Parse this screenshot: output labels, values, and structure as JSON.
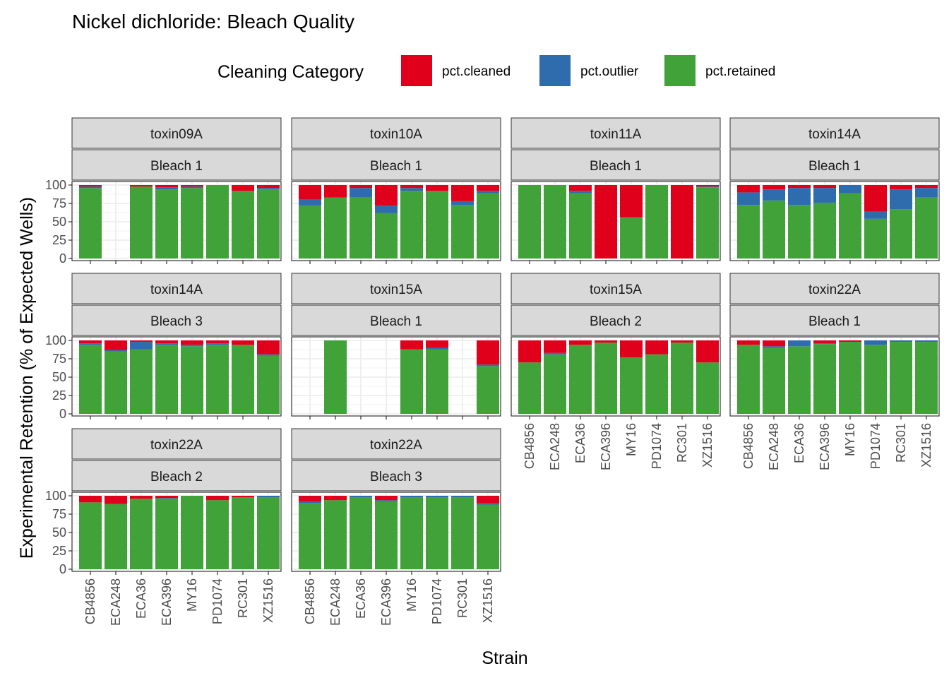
{
  "chart_data": {
    "type": "bar",
    "stacked": true,
    "title": "Nickel dichloride: Bleach Quality",
    "xlabel": "Strain",
    "ylabel": "Experimental Retention (% of Expected Wells)",
    "ylim": [
      0,
      100
    ],
    "y_ticks": [
      "0",
      "25",
      "50",
      "75",
      "100"
    ],
    "categories": [
      "CB4856",
      "ECA248",
      "ECA36",
      "ECA396",
      "MY16",
      "PD1074",
      "RC301",
      "XZ1516"
    ],
    "legend": {
      "title": "Cleaning Category",
      "position": "top",
      "entries": [
        {
          "key": "cleaned",
          "label": "pct.cleaned",
          "color": "#e0001b"
        },
        {
          "key": "outlier",
          "label": "pct.outlier",
          "color": "#2e6cad"
        },
        {
          "key": "retained",
          "label": "pct.retained",
          "color": "#41a23a"
        }
      ]
    },
    "panels": [
      {
        "toxin": "toxin09A",
        "bleach": "Bleach 1",
        "bars": [
          {
            "strain": "CB4856",
            "retained": 96,
            "outlier": 2,
            "cleaned": 2
          },
          null,
          {
            "strain": "ECA36",
            "retained": 98,
            "outlier": 0,
            "cleaned": 2
          },
          {
            "strain": "ECA396",
            "retained": 94,
            "outlier": 3,
            "cleaned": 3
          },
          {
            "strain": "MY16",
            "retained": 96,
            "outlier": 2,
            "cleaned": 2
          },
          {
            "strain": "PD1074",
            "retained": 100,
            "outlier": 0,
            "cleaned": 0
          },
          {
            "strain": "RC301",
            "retained": 92,
            "outlier": 0,
            "cleaned": 8
          },
          {
            "strain": "XZ1516",
            "retained": 94,
            "outlier": 2,
            "cleaned": 4
          }
        ]
      },
      {
        "toxin": "toxin10A",
        "bleach": "Bleach 1",
        "bars": [
          {
            "strain": "CB4856",
            "retained": 72,
            "outlier": 8,
            "cleaned": 20
          },
          {
            "strain": "ECA248",
            "retained": 83,
            "outlier": 0,
            "cleaned": 17
          },
          {
            "strain": "ECA36",
            "retained": 83,
            "outlier": 13,
            "cleaned": 4
          },
          {
            "strain": "ECA396",
            "retained": 62,
            "outlier": 10,
            "cleaned": 28
          },
          {
            "strain": "MY16",
            "retained": 92,
            "outlier": 4,
            "cleaned": 4
          },
          {
            "strain": "PD1074",
            "retained": 92,
            "outlier": 0,
            "cleaned": 8
          },
          {
            "strain": "RC301",
            "retained": 73,
            "outlier": 5,
            "cleaned": 22
          },
          {
            "strain": "XZ1516",
            "retained": 89,
            "outlier": 3,
            "cleaned": 8
          }
        ]
      },
      {
        "toxin": "toxin11A",
        "bleach": "Bleach 1",
        "bars": [
          {
            "strain": "CB4856",
            "retained": 100,
            "outlier": 0,
            "cleaned": 0
          },
          {
            "strain": "ECA248",
            "retained": 100,
            "outlier": 0,
            "cleaned": 0
          },
          {
            "strain": "ECA36",
            "retained": 89,
            "outlier": 3,
            "cleaned": 8
          },
          {
            "strain": "ECA396",
            "retained": 0,
            "outlier": 0,
            "cleaned": 100
          },
          {
            "strain": "MY16",
            "retained": 56,
            "outlier": 0,
            "cleaned": 44
          },
          {
            "strain": "PD1074",
            "retained": 100,
            "outlier": 0,
            "cleaned": 0
          },
          {
            "strain": "RC301",
            "retained": 0,
            "outlier": 0,
            "cleaned": 100
          },
          {
            "strain": "XZ1516",
            "retained": 97,
            "outlier": 1,
            "cleaned": 2
          }
        ]
      },
      {
        "toxin": "toxin14A",
        "bleach": "Bleach 1",
        "bars": [
          {
            "strain": "CB4856",
            "retained": 73,
            "outlier": 17,
            "cleaned": 10
          },
          {
            "strain": "ECA248",
            "retained": 79,
            "outlier": 15,
            "cleaned": 6
          },
          {
            "strain": "ECA36",
            "retained": 73,
            "outlier": 23,
            "cleaned": 4
          },
          {
            "strain": "ECA396",
            "retained": 76,
            "outlier": 20,
            "cleaned": 4
          },
          {
            "strain": "MY16",
            "retained": 89,
            "outlier": 11,
            "cleaned": 0
          },
          {
            "strain": "PD1074",
            "retained": 54,
            "outlier": 10,
            "cleaned": 36
          },
          {
            "strain": "RC301",
            "retained": 67,
            "outlier": 27,
            "cleaned": 6
          },
          {
            "strain": "XZ1516",
            "retained": 83,
            "outlier": 13,
            "cleaned": 4
          }
        ]
      },
      {
        "toxin": "toxin14A",
        "bleach": "Bleach 3",
        "bars": [
          {
            "strain": "CB4856",
            "retained": 94,
            "outlier": 2,
            "cleaned": 4
          },
          {
            "strain": "ECA248",
            "retained": 85,
            "outlier": 2,
            "cleaned": 13
          },
          {
            "strain": "ECA36",
            "retained": 88,
            "outlier": 10,
            "cleaned": 2
          },
          {
            "strain": "ECA396",
            "retained": 94,
            "outlier": 2,
            "cleaned": 4
          },
          {
            "strain": "MY16",
            "retained": 92,
            "outlier": 2,
            "cleaned": 6
          },
          {
            "strain": "PD1074",
            "retained": 94,
            "outlier": 2,
            "cleaned": 4
          },
          {
            "strain": "RC301",
            "retained": 94,
            "outlier": 0,
            "cleaned": 6
          },
          {
            "strain": "XZ1516",
            "retained": 79,
            "outlier": 2,
            "cleaned": 19
          }
        ]
      },
      {
        "toxin": "toxin15A",
        "bleach": "Bleach 1",
        "bars": [
          null,
          {
            "strain": "ECA248",
            "retained": 100,
            "outlier": 0,
            "cleaned": 0
          },
          null,
          null,
          {
            "strain": "MY16",
            "retained": 88,
            "outlier": 0,
            "cleaned": 12
          },
          {
            "strain": "PD1074",
            "retained": 88,
            "outlier": 2,
            "cleaned": 10
          },
          null,
          {
            "strain": "XZ1516",
            "retained": 65,
            "outlier": 2,
            "cleaned": 33
          }
        ]
      },
      {
        "toxin": "toxin15A",
        "bleach": "Bleach 2",
        "bars": [
          {
            "strain": "CB4856",
            "retained": 70,
            "outlier": 0,
            "cleaned": 30
          },
          {
            "strain": "ECA248",
            "retained": 81,
            "outlier": 2,
            "cleaned": 17
          },
          {
            "strain": "ECA36",
            "retained": 94,
            "outlier": 0,
            "cleaned": 6
          },
          {
            "strain": "ECA396",
            "retained": 97,
            "outlier": 0,
            "cleaned": 3
          },
          {
            "strain": "MY16",
            "retained": 77,
            "outlier": 0,
            "cleaned": 23
          },
          {
            "strain": "PD1074",
            "retained": 81,
            "outlier": 0,
            "cleaned": 19
          },
          {
            "strain": "RC301",
            "retained": 97,
            "outlier": 0,
            "cleaned": 3
          },
          {
            "strain": "XZ1516",
            "retained": 70,
            "outlier": 0,
            "cleaned": 30
          }
        ]
      },
      {
        "toxin": "toxin22A",
        "bleach": "Bleach 1",
        "bars": [
          {
            "strain": "CB4856",
            "retained": 94,
            "outlier": 0,
            "cleaned": 6
          },
          {
            "strain": "ECA248",
            "retained": 90,
            "outlier": 2,
            "cleaned": 8
          },
          {
            "strain": "ECA36",
            "retained": 92,
            "outlier": 8,
            "cleaned": 0
          },
          {
            "strain": "ECA396",
            "retained": 95,
            "outlier": 1,
            "cleaned": 4
          },
          {
            "strain": "MY16",
            "retained": 98,
            "outlier": 0,
            "cleaned": 2
          },
          {
            "strain": "PD1074",
            "retained": 94,
            "outlier": 6,
            "cleaned": 0
          },
          {
            "strain": "RC301",
            "retained": 98,
            "outlier": 2,
            "cleaned": 0
          },
          {
            "strain": "XZ1516",
            "retained": 98,
            "outlier": 2,
            "cleaned": 0
          }
        ]
      },
      {
        "toxin": "toxin22A",
        "bleach": "Bleach 2",
        "bars": [
          {
            "strain": "CB4856",
            "retained": 91,
            "outlier": 0,
            "cleaned": 9
          },
          {
            "strain": "ECA248",
            "retained": 89,
            "outlier": 0,
            "cleaned": 11
          },
          {
            "strain": "ECA36",
            "retained": 96,
            "outlier": 0,
            "cleaned": 4
          },
          {
            "strain": "ECA396",
            "retained": 96,
            "outlier": 1,
            "cleaned": 3
          },
          {
            "strain": "MY16",
            "retained": 100,
            "outlier": 0,
            "cleaned": 0
          },
          {
            "strain": "PD1074",
            "retained": 94,
            "outlier": 0,
            "cleaned": 6
          },
          {
            "strain": "RC301",
            "retained": 98,
            "outlier": 0,
            "cleaned": 2
          },
          {
            "strain": "XZ1516",
            "retained": 98,
            "outlier": 2,
            "cleaned": 0
          }
        ]
      },
      {
        "toxin": "toxin22A",
        "bleach": "Bleach 3",
        "bars": [
          {
            "strain": "CB4856",
            "retained": 90,
            "outlier": 2,
            "cleaned": 8
          },
          {
            "strain": "ECA248",
            "retained": 94,
            "outlier": 0,
            "cleaned": 6
          },
          {
            "strain": "ECA36",
            "retained": 98,
            "outlier": 2,
            "cleaned": 0
          },
          {
            "strain": "ECA396",
            "retained": 92,
            "outlier": 2,
            "cleaned": 6
          },
          {
            "strain": "MY16",
            "retained": 98,
            "outlier": 2,
            "cleaned": 0
          },
          {
            "strain": "PD1074",
            "retained": 98,
            "outlier": 2,
            "cleaned": 0
          },
          {
            "strain": "RC301",
            "retained": 98,
            "outlier": 2,
            "cleaned": 0
          },
          {
            "strain": "XZ1516",
            "retained": 88,
            "outlier": 2,
            "cleaned": 10
          }
        ]
      }
    ]
  }
}
